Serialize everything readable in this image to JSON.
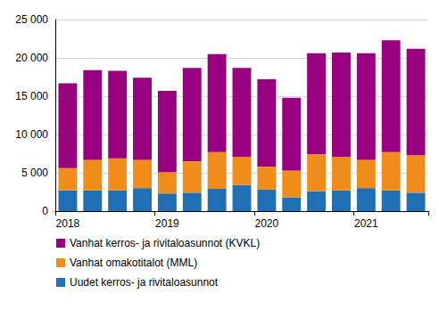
{
  "chart_data": {
    "type": "bar",
    "stacked": true,
    "grid": true,
    "legend": "bottom",
    "categories": [
      "2018",
      null,
      null,
      null,
      "2019",
      null,
      null,
      null,
      "2020",
      null,
      null,
      null,
      "2021",
      null,
      null
    ],
    "series": [
      {
        "name": "Uudet kerros- ja rivitaloasunnot",
        "color": "#1f6fb5",
        "values": [
          2700,
          2700,
          2700,
          3000,
          2300,
          2400,
          2900,
          3400,
          2800,
          1800,
          2600,
          2700,
          3000,
          2700,
          2400
        ]
      },
      {
        "name": "Vanhat omakotitalot (MML)",
        "color": "#f08c1a",
        "values": [
          2900,
          4000,
          4200,
          3700,
          2800,
          4100,
          4800,
          3700,
          3000,
          3500,
          4800,
          4400,
          3700,
          5000,
          4900
        ]
      },
      {
        "name": "Vanhat kerros- ja rivitaloasunnot (KVKL)",
        "color": "#990080",
        "values": [
          11100,
          11700,
          11400,
          10700,
          10600,
          12200,
          12800,
          11600,
          11400,
          9500,
          13200,
          13600,
          13900,
          14600,
          13900
        ]
      }
    ],
    "ylim": [
      0,
      25000
    ],
    "yticks": [
      0,
      {
        "value": 5000,
        "label": "5 000"
      },
      {
        "value": 10000,
        "label": "10 000"
      },
      {
        "value": 15000,
        "label": "15 000"
      },
      {
        "value": 20000,
        "label": "20 000"
      },
      {
        "value": 25000,
        "label": "25 000"
      }
    ]
  }
}
